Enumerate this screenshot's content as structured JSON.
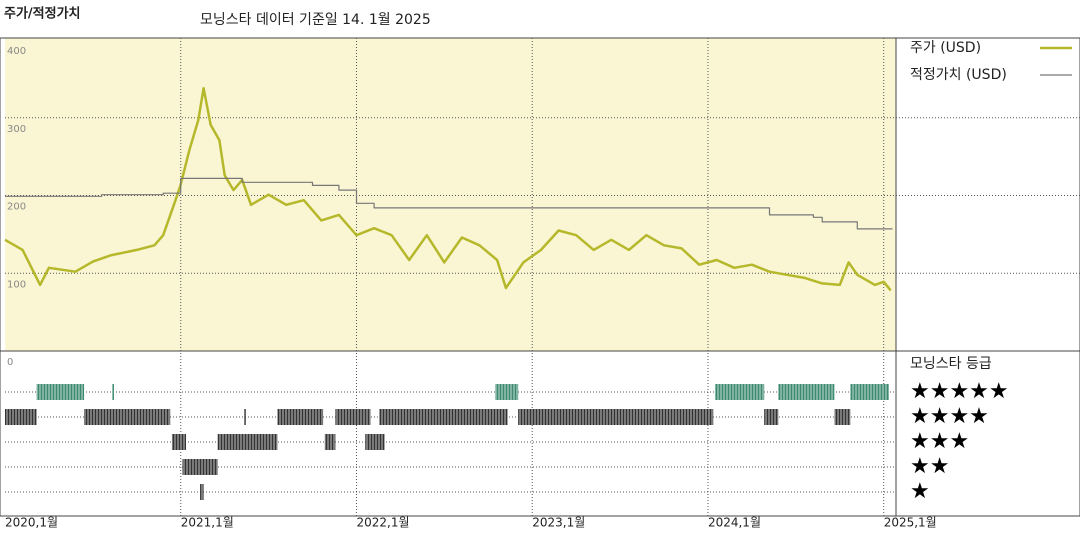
{
  "chart_data": {
    "type": "line",
    "title": "주가/적정가치",
    "subtitle": "모닝스타 데이터 기준일 14. 1월 2025",
    "xlim": [
      2020.0,
      2025.07
    ],
    "xticks": [
      {
        "value": 2020,
        "label": "2020,1월"
      },
      {
        "value": 2021,
        "label": "2021,1월"
      },
      {
        "value": 2022,
        "label": "2022,1월"
      },
      {
        "value": 2023,
        "label": "2023,1월"
      },
      {
        "value": 2024,
        "label": "2024,1월"
      },
      {
        "value": 2025,
        "label": "2025,1월"
      }
    ],
    "ylim": [
      0,
      400
    ],
    "yticks": [
      0,
      100,
      200,
      300,
      400
    ],
    "grid": true,
    "legend": "upper right",
    "series": [
      {
        "name": "주가 (USD)",
        "color": "#b5b82a",
        "x": [
          2020.0,
          2020.1,
          2020.2,
          2020.25,
          2020.4,
          2020.5,
          2020.6,
          2020.75,
          2020.85,
          2020.9,
          2020.97,
          2021.0,
          2021.05,
          2021.1,
          2021.13,
          2021.17,
          2021.22,
          2021.25,
          2021.3,
          2021.35,
          2021.4,
          2021.5,
          2021.6,
          2021.7,
          2021.8,
          2021.9,
          2022.0,
          2022.1,
          2022.2,
          2022.3,
          2022.4,
          2022.5,
          2022.6,
          2022.7,
          2022.8,
          2022.85,
          2022.95,
          2023.05,
          2023.15,
          2023.25,
          2023.35,
          2023.45,
          2023.55,
          2023.65,
          2023.75,
          2023.85,
          2023.95,
          2024.05,
          2024.15,
          2024.25,
          2024.35,
          2024.45,
          2024.55,
          2024.65,
          2024.75,
          2024.8,
          2024.85,
          2024.95,
          2025.0,
          2025.04
        ],
        "values": [
          143,
          130,
          85,
          107,
          102,
          115,
          123,
          130,
          136,
          149,
          194,
          214,
          259,
          297,
          338,
          291,
          271,
          226,
          207,
          220,
          188,
          201,
          188,
          194,
          168,
          175,
          149,
          158,
          149,
          117,
          149,
          114,
          146,
          136,
          117,
          81,
          114,
          130,
          155,
          149,
          130,
          143,
          130,
          149,
          136,
          132,
          111,
          117,
          107,
          111,
          102,
          98,
          94,
          87,
          85,
          114,
          98,
          85,
          89,
          78
        ]
      },
      {
        "name": "적정가치 (USD)",
        "color": "#777777",
        "drawstyle": "steps-post",
        "x": [
          2020.0,
          2020.55,
          2020.9,
          2021.0,
          2021.35,
          2021.75,
          2021.9,
          2022.0,
          2022.1,
          2024.3,
          2024.35,
          2024.6,
          2024.65,
          2024.85,
          2025.05
        ],
        "values": [
          199,
          201,
          203,
          222,
          217,
          213,
          207,
          190,
          184,
          184,
          175,
          172,
          166,
          157,
          157
        ]
      }
    ],
    "ratings": {
      "title": "모닝스타 등급",
      "labels": [
        "★★★★★",
        "★★★★",
        "★★★",
        "★★",
        "★"
      ],
      "levels": [
        5,
        4,
        3,
        2,
        1
      ],
      "colors": {
        "5": "#3d8a70",
        "other": "#333333"
      },
      "periods": [
        {
          "rating": 5,
          "start": 2020.18,
          "end": 2020.45
        },
        {
          "rating": 5,
          "start": 2020.61,
          "end": 2020.62
        },
        {
          "rating": 5,
          "start": 2022.79,
          "end": 2022.92
        },
        {
          "rating": 5,
          "start": 2024.04,
          "end": 2024.32
        },
        {
          "rating": 5,
          "start": 2024.4,
          "end": 2024.72
        },
        {
          "rating": 5,
          "start": 2024.81,
          "end": 2025.03
        },
        {
          "rating": 4,
          "start": 2020.0,
          "end": 2020.18
        },
        {
          "rating": 4,
          "start": 2020.45,
          "end": 2020.94
        },
        {
          "rating": 4,
          "start": 2021.36,
          "end": 2021.37
        },
        {
          "rating": 4,
          "start": 2021.55,
          "end": 2021.81
        },
        {
          "rating": 4,
          "start": 2021.88,
          "end": 2022.08
        },
        {
          "rating": 4,
          "start": 2022.13,
          "end": 2022.86
        },
        {
          "rating": 4,
          "start": 2022.92,
          "end": 2024.03
        },
        {
          "rating": 4,
          "start": 2024.32,
          "end": 2024.4
        },
        {
          "rating": 4,
          "start": 2024.72,
          "end": 2024.81
        },
        {
          "rating": 3,
          "start": 2020.95,
          "end": 2021.03
        },
        {
          "rating": 3,
          "start": 2021.21,
          "end": 2021.55
        },
        {
          "rating": 3,
          "start": 2021.82,
          "end": 2021.88
        },
        {
          "rating": 3,
          "start": 2022.05,
          "end": 2022.16
        },
        {
          "rating": 2,
          "start": 2021.01,
          "end": 2021.21
        },
        {
          "rating": 1,
          "start": 2021.11,
          "end": 2021.13
        }
      ]
    }
  }
}
